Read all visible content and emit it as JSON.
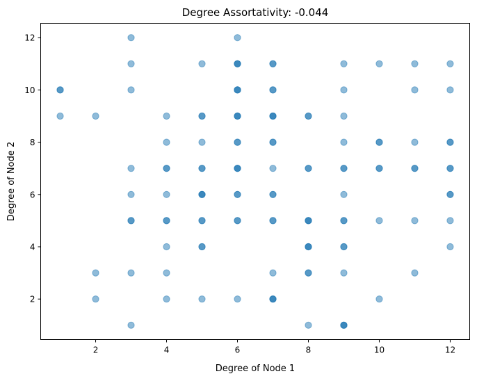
{
  "chart_data": {
    "type": "scatter",
    "title": "Degree Assortativity: -0.044",
    "xlabel": "Degree of Node 1",
    "ylabel": "Degree of Node 2",
    "xlim": [
      0.45,
      12.55
    ],
    "ylim": [
      0.45,
      12.55
    ],
    "xticks": [
      2,
      4,
      6,
      8,
      10,
      12
    ],
    "yticks": [
      2,
      4,
      6,
      8,
      10,
      12
    ],
    "grid": false,
    "marker_color": "#1f77b4",
    "marker_alpha": 0.5,
    "points": [
      [
        1,
        10
      ],
      [
        1,
        10
      ],
      [
        1,
        9
      ],
      [
        2,
        9
      ],
      [
        2,
        3
      ],
      [
        2,
        2
      ],
      [
        3,
        12
      ],
      [
        3,
        11
      ],
      [
        3,
        10
      ],
      [
        3,
        7
      ],
      [
        3,
        6
      ],
      [
        3,
        5
      ],
      [
        3,
        5
      ],
      [
        3,
        3
      ],
      [
        3,
        1
      ],
      [
        4,
        9
      ],
      [
        4,
        8
      ],
      [
        4,
        7
      ],
      [
        4,
        7
      ],
      [
        4,
        6
      ],
      [
        4,
        5
      ],
      [
        4,
        5
      ],
      [
        4,
        4
      ],
      [
        4,
        3
      ],
      [
        4,
        2
      ],
      [
        5,
        11
      ],
      [
        5,
        9
      ],
      [
        5,
        9
      ],
      [
        5,
        8
      ],
      [
        5,
        7
      ],
      [
        5,
        7
      ],
      [
        5,
        6
      ],
      [
        5,
        6
      ],
      [
        5,
        6
      ],
      [
        5,
        5
      ],
      [
        5,
        5
      ],
      [
        5,
        4
      ],
      [
        5,
        4
      ],
      [
        5,
        2
      ],
      [
        6,
        12
      ],
      [
        6,
        11
      ],
      [
        6,
        11
      ],
      [
        6,
        11
      ],
      [
        6,
        10
      ],
      [
        6,
        10
      ],
      [
        6,
        10
      ],
      [
        6,
        9
      ],
      [
        6,
        9
      ],
      [
        6,
        9
      ],
      [
        6,
        8
      ],
      [
        6,
        8
      ],
      [
        6,
        7
      ],
      [
        6,
        7
      ],
      [
        6,
        7
      ],
      [
        6,
        6
      ],
      [
        6,
        6
      ],
      [
        6,
        5
      ],
      [
        6,
        5
      ],
      [
        6,
        2
      ],
      [
        7,
        11
      ],
      [
        7,
        11
      ],
      [
        7,
        10
      ],
      [
        7,
        10
      ],
      [
        7,
        9
      ],
      [
        7,
        9
      ],
      [
        7,
        9
      ],
      [
        7,
        8
      ],
      [
        7,
        8
      ],
      [
        7,
        7
      ],
      [
        7,
        6
      ],
      [
        7,
        6
      ],
      [
        7,
        5
      ],
      [
        7,
        5
      ],
      [
        7,
        3
      ],
      [
        7,
        2
      ],
      [
        7,
        2
      ],
      [
        7,
        2
      ],
      [
        8,
        9
      ],
      [
        8,
        9
      ],
      [
        8,
        7
      ],
      [
        8,
        7
      ],
      [
        8,
        5
      ],
      [
        8,
        5
      ],
      [
        8,
        5
      ],
      [
        8,
        4
      ],
      [
        8,
        4
      ],
      [
        8,
        4
      ],
      [
        8,
        3
      ],
      [
        8,
        3
      ],
      [
        8,
        1
      ],
      [
        9,
        11
      ],
      [
        9,
        10
      ],
      [
        9,
        9
      ],
      [
        9,
        8
      ],
      [
        9,
        7
      ],
      [
        9,
        7
      ],
      [
        9,
        6
      ],
      [
        9,
        5
      ],
      [
        9,
        5
      ],
      [
        9,
        4
      ],
      [
        9,
        4
      ],
      [
        9,
        3
      ],
      [
        9,
        1
      ],
      [
        9,
        1
      ],
      [
        9,
        1
      ],
      [
        10,
        11
      ],
      [
        10,
        8
      ],
      [
        10,
        8
      ],
      [
        10,
        7
      ],
      [
        10,
        7
      ],
      [
        10,
        5
      ],
      [
        10,
        2
      ],
      [
        11,
        11
      ],
      [
        11,
        10
      ],
      [
        11,
        8
      ],
      [
        11,
        7
      ],
      [
        11,
        7
      ],
      [
        11,
        5
      ],
      [
        11,
        3
      ],
      [
        12,
        11
      ],
      [
        12,
        10
      ],
      [
        12,
        8
      ],
      [
        12,
        8
      ],
      [
        12,
        7
      ],
      [
        12,
        7
      ],
      [
        12,
        6
      ],
      [
        12,
        6
      ],
      [
        12,
        5
      ],
      [
        12,
        4
      ]
    ]
  }
}
